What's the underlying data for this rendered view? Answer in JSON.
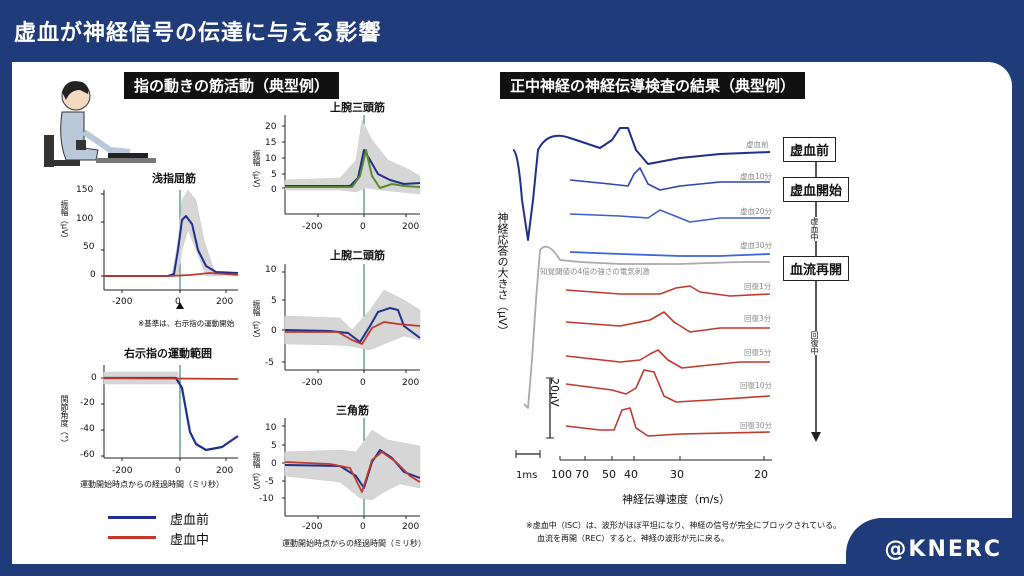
{
  "header": {
    "title": "虚血が神経信号の伝達に与える影響"
  },
  "footer": {
    "handle": "@KNERC"
  },
  "colors": {
    "pre": "#1f2f8c",
    "isc": "#c0392b",
    "green": "#5a8a2a",
    "band": "#cccccc",
    "navy": "#1f3b7a"
  },
  "left": {
    "title": "指の動きの筋活動（典型例）",
    "fds": {
      "title": "浅指屈筋",
      "ylabel": "振幅（μV）",
      "yticks": [
        "150",
        "100",
        "50",
        "0"
      ],
      "xticks": [
        "-200",
        "0",
        "200"
      ],
      "note": "※基準は、右示指の運動開始"
    },
    "rom": {
      "title": "右示指の運動範囲",
      "ylabel": "関節角度（°）",
      "yticks": [
        "0",
        "-20",
        "-40",
        "-60"
      ],
      "xticks": [
        "-200",
        "0",
        "200"
      ],
      "xlabel": "運動開始時点からの経過時間（ミリ秒）"
    },
    "triceps": {
      "title": "上腕三頭筋",
      "ylabel": "振幅（μV）",
      "yticks": [
        "20",
        "15",
        "10",
        "5",
        "0"
      ],
      "xticks": [
        "-200",
        "0",
        "200"
      ]
    },
    "biceps": {
      "title": "上腕二頭筋",
      "ylabel": "振幅（μV）",
      "yticks": [
        "10",
        "5",
        "0",
        "-5"
      ],
      "xticks": [
        "-200",
        "0",
        "200"
      ]
    },
    "deltoid": {
      "title": "三角筋",
      "ylabel": "振幅（μV）",
      "yticks": [
        "10",
        "5",
        "0",
        "-5",
        "-10"
      ],
      "xticks": [
        "-200",
        "0",
        "200"
      ],
      "xlabel": "運動開始時点からの経過時間（ミリ秒）"
    },
    "legend": [
      {
        "label": "虚血前",
        "color": "#1f2f8c"
      },
      {
        "label": "虚血中",
        "color": "#c0392b"
      }
    ]
  },
  "right": {
    "title": "正中神経の神経伝導検査の結果（典型例）",
    "ylabel": "神経応答の大きさ（μV）",
    "stimulus_label": "知覚閾値の4倍の強さの電気刺激",
    "scale_bar": "20μV",
    "time_bar": "1ms",
    "xticks": [
      "100",
      "70",
      "50",
      "40",
      "30",
      "20"
    ],
    "xlabel": "神経伝導速度（m/s）",
    "trace_labels": [
      "虚血前",
      "虚血10分",
      "虚血20分",
      "虚血30分",
      "回復1分",
      "回復3分",
      "回復5分",
      "回復10分",
      "回復30分"
    ],
    "boxes": [
      "虚血前",
      "虚血開始",
      "血流再開"
    ],
    "phase_isc": "虚血中",
    "phase_rec": "回復中",
    "note1": "※虚血中（ISC）は、波形がほぼ平坦になり、神経の信号が完全にブロックされている。",
    "note2": "血流を再開（REC）すると、神経の波形が元に戻る。"
  }
}
